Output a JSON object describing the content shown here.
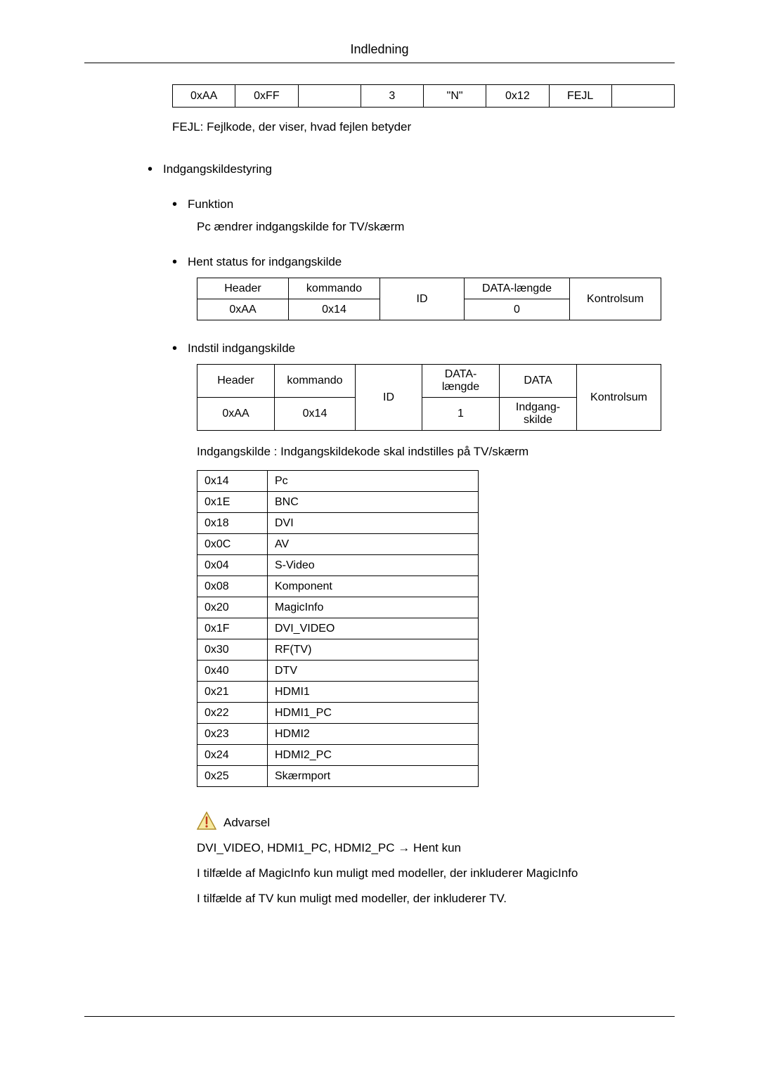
{
  "page": {
    "header_title": "Indledning"
  },
  "nak_row": {
    "cells": [
      "0xAA",
      "0xFF",
      "",
      "3",
      "\"N\"",
      "0x12",
      "FEJL",
      ""
    ]
  },
  "explain1": "FEJL: Fejlkode, der viser, hvad fejlen betyder",
  "section1": {
    "title": "Indgangskildestyring",
    "sub1": {
      "title": "Funktion",
      "body": "Pc ændrer indgangskilde for TV/skærm"
    },
    "sub2": {
      "title": "Hent status for indgangskilde",
      "table": {
        "headers": [
          "Header",
          "kommando",
          "ID",
          "DATA-længde",
          "Kontrolsum"
        ],
        "row": [
          "0xAA",
          "0x14",
          "",
          "0",
          ""
        ]
      }
    },
    "sub3": {
      "title": "Indstil indgangskilde",
      "table": {
        "headers": [
          "Header",
          "kommando",
          "ID",
          "DATA-længde",
          "DATA",
          "Kontrolsum"
        ],
        "row": [
          "0xAA",
          "0x14",
          "",
          "1",
          "Indgang-\nskilde",
          ""
        ]
      },
      "desc": "Indgangskilde : Indgangskildekode skal indstilles på TV/skærm",
      "codes": [
        {
          "code": "0x14",
          "label": "Pc"
        },
        {
          "code": "0x1E",
          "label": "BNC"
        },
        {
          "code": "0x18",
          "label": "DVI"
        },
        {
          "code": "0x0C",
          "label": "AV"
        },
        {
          "code": "0x04",
          "label": "S-Video"
        },
        {
          "code": "0x08",
          "label": "Komponent"
        },
        {
          "code": "0x20",
          "label": "MagicInfo"
        },
        {
          "code": "0x1F",
          "label": "DVI_VIDEO"
        },
        {
          "code": "0x30",
          "label": "RF(TV)"
        },
        {
          "code": "0x40",
          "label": "DTV"
        },
        {
          "code": "0x21",
          "label": "HDMI1"
        },
        {
          "code": "0x22",
          "label": "HDMI1_PC"
        },
        {
          "code": "0x23",
          "label": "HDMI2"
        },
        {
          "code": "0x24",
          "label": "HDMI2_PC"
        },
        {
          "code": "0x25",
          "label": "Skærmport"
        }
      ]
    }
  },
  "warning": {
    "label": "Advarsel",
    "line1": "DVI_VIDEO, HDMI1_PC, HDMI2_PC → Hent kun",
    "line2": "I tilfælde af MagicInfo kun muligt med modeller, der inkluderer MagicInfo",
    "line3": "I tilfælde af TV kun muligt med modeller, der inkluderer TV."
  },
  "colors": {
    "text": "#000000",
    "bg": "#ffffff",
    "warn_fill": "#f7e9a0",
    "warn_stroke": "#b08d2a",
    "warn_bang": "#c23a1a"
  }
}
